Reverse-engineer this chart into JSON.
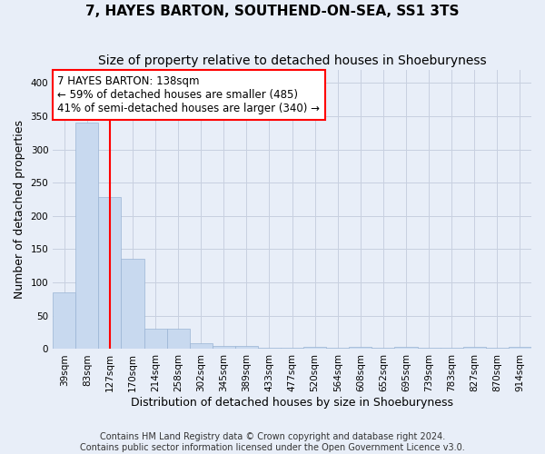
{
  "title": "7, HAYES BARTON, SOUTHEND-ON-SEA, SS1 3TS",
  "subtitle": "Size of property relative to detached houses in Shoeburyness",
  "xlabel": "Distribution of detached houses by size in Shoeburyness",
  "ylabel": "Number of detached properties",
  "footnote1": "Contains HM Land Registry data © Crown copyright and database right 2024.",
  "footnote2": "Contains public sector information licensed under the Open Government Licence v3.0.",
  "categories": [
    "39sqm",
    "83sqm",
    "127sqm",
    "170sqm",
    "214sqm",
    "258sqm",
    "302sqm",
    "345sqm",
    "389sqm",
    "433sqm",
    "477sqm",
    "520sqm",
    "564sqm",
    "608sqm",
    "652sqm",
    "695sqm",
    "739sqm",
    "783sqm",
    "827sqm",
    "870sqm",
    "914sqm"
  ],
  "values": [
    85,
    340,
    228,
    135,
    30,
    30,
    9,
    5,
    5,
    2,
    2,
    3,
    2,
    3,
    2,
    3,
    2,
    2,
    3,
    2,
    3
  ],
  "bar_color": "#c8d9ef",
  "bar_edge_color": "#9ab4d4",
  "property_line_x": 2.0,
  "annotation_text": "7 HAYES BARTON: 138sqm\n← 59% of detached houses are smaller (485)\n41% of semi-detached houses are larger (340) →",
  "annotation_box_color": "white",
  "annotation_box_edge_color": "red",
  "property_line_color": "red",
  "ylim": [
    0,
    420
  ],
  "yticks": [
    0,
    50,
    100,
    150,
    200,
    250,
    300,
    350,
    400
  ],
  "bg_color": "#e8eef8",
  "plot_bg_color": "#e8eef8",
  "grid_color": "#c8d0e0",
  "title_fontsize": 11,
  "subtitle_fontsize": 10,
  "axis_label_fontsize": 9,
  "tick_fontsize": 7.5,
  "annotation_fontsize": 8.5,
  "footnote_fontsize": 7
}
